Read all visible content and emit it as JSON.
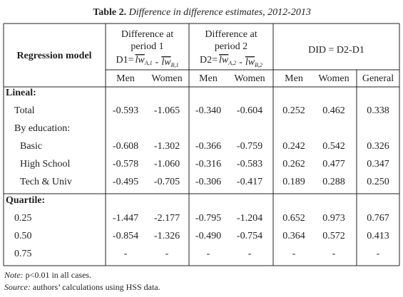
{
  "title": {
    "label": "Table 2.",
    "text": "Difference in difference estimates, 2012-2013"
  },
  "table": {
    "stub_header": "Regression model",
    "groups": [
      {
        "title_lines": [
          "Difference at",
          "period 1"
        ],
        "formula": {
          "lhs": "D1=",
          "terms": [
            {
              "base": "lw",
              "sub": "A,1"
            },
            {
              "base": "lw",
              "sub": "B,1"
            }
          ],
          "op": "-"
        }
      },
      {
        "title_lines": [
          "Difference at",
          "period 2"
        ],
        "formula": {
          "lhs": "D2=",
          "terms": [
            {
              "base": "lw",
              "sub": "A,2"
            },
            {
              "base": "lw",
              "sub": "B,2"
            }
          ],
          "op": "-"
        }
      },
      {
        "title_lines": [
          "DID = D2-D1"
        ]
      }
    ],
    "columns": [
      "Men",
      "Women",
      "Men",
      "Women",
      "Men",
      "Women",
      "General"
    ],
    "sections": [
      {
        "label": "Lineal:",
        "rows": [
          {
            "label": "Total",
            "values": [
              "-0.593",
              "-1.065",
              "-0.340",
              "-0.604",
              "0.252",
              "0.462",
              "0.338"
            ]
          },
          {
            "label": "By education:",
            "rows": [
              {
                "label": "Basic",
                "values": [
                  "-0.608",
                  "-1.302",
                  "-0.366",
                  "-0.759",
                  "0.242",
                  "0.542",
                  "0.326"
                ]
              },
              {
                "label": "High School",
                "values": [
                  "-0.578",
                  "-1.060",
                  "-0.316",
                  "-0.583",
                  "0.262",
                  "0.477",
                  "0.347"
                ]
              },
              {
                "label": "Tech & Univ",
                "values": [
                  "-0.495",
                  "-0.705",
                  "-0.306",
                  "-0.417",
                  "0.189",
                  "0.288",
                  "0.250"
                ]
              }
            ]
          }
        ]
      },
      {
        "label": "Quartile:",
        "rows": [
          {
            "label": "0.25",
            "values": [
              "-1.447",
              "-2.177",
              "-0.795",
              "-1.204",
              "0.652",
              "0.973",
              "0.767"
            ]
          },
          {
            "label": "0.50",
            "values": [
              "-0.854",
              "-1.326",
              "-0.490",
              "-0.754",
              "0.364",
              "0.572",
              "0.413"
            ]
          },
          {
            "label": "0.75",
            "values": [
              "-",
              "-",
              "-",
              "-",
              "-",
              "-",
              "-"
            ]
          }
        ]
      }
    ]
  },
  "notes": [
    {
      "label": "Note:",
      "text": "p<0.01 in all cases."
    },
    {
      "label": "Source:",
      "text": "authors’ calculations using HSS data."
    }
  ]
}
